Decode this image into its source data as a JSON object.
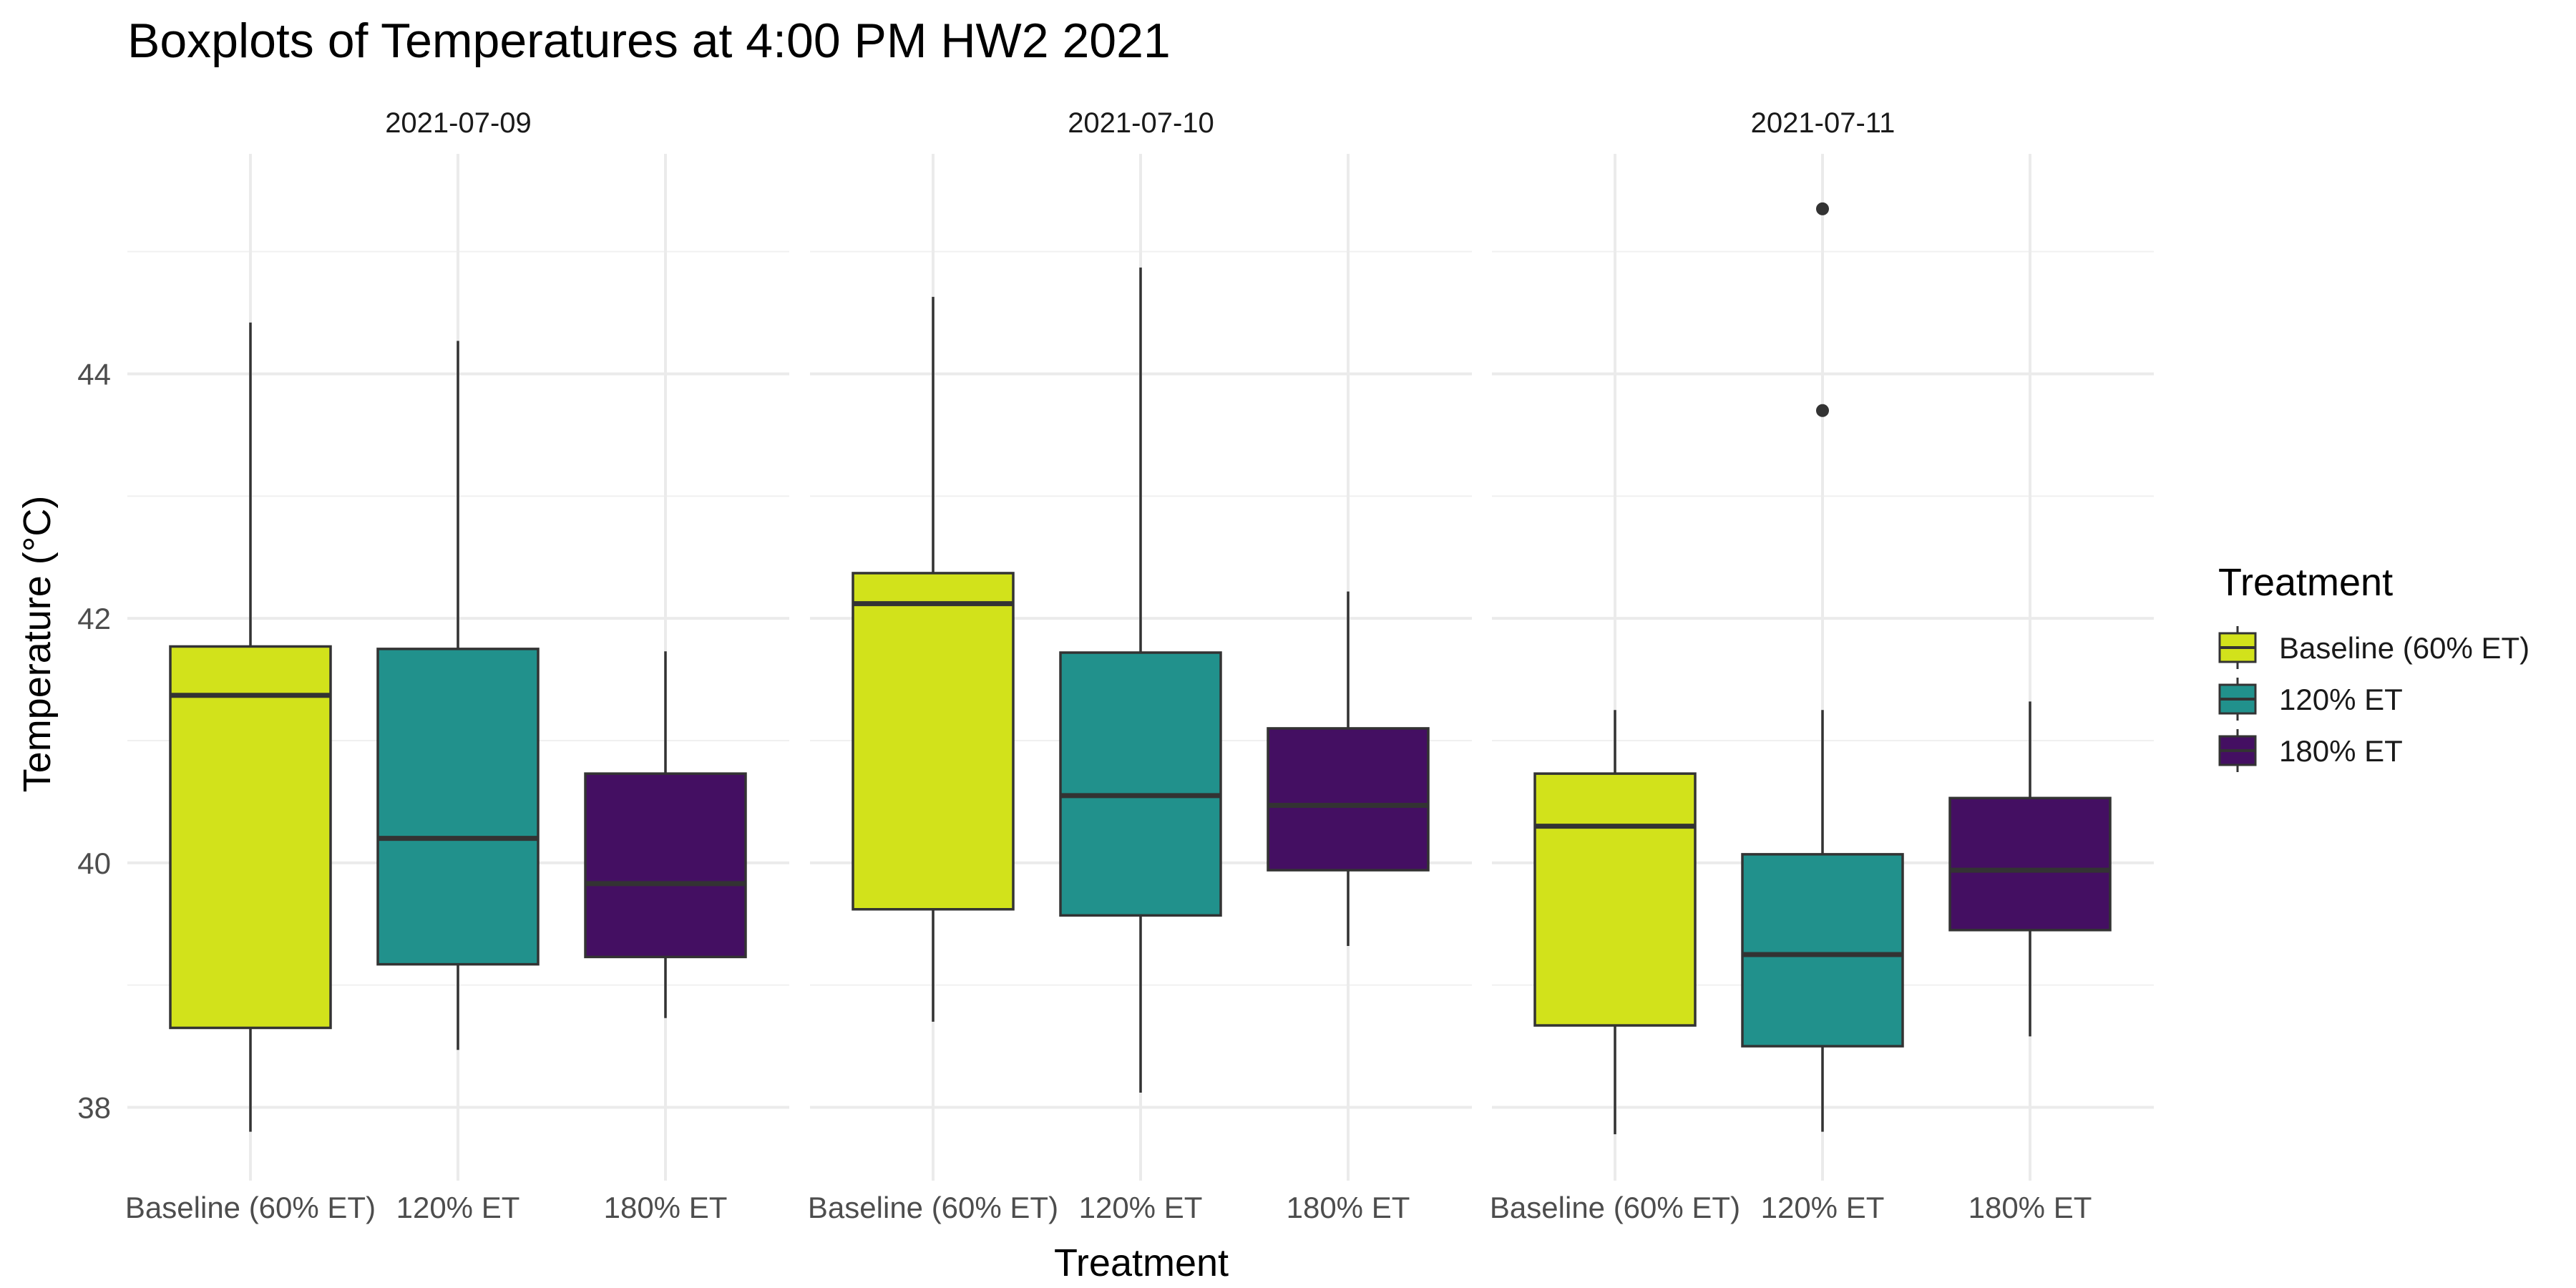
{
  "chart_data": {
    "type": "boxplot",
    "title": "Boxplots of Temperatures at 4:00 PM HW2 2021",
    "xlabel": "Treatment",
    "ylabel": "Temperature (°C)",
    "ylim": [
      37.4,
      45.8
    ],
    "yticks": [
      38,
      40,
      42,
      44
    ],
    "grid": true,
    "legend": {
      "title": "Treatment",
      "position": "right",
      "entries": [
        {
          "label": "Baseline (60% ET)",
          "color": "#d2e21b"
        },
        {
          "label": "120% ET",
          "color": "#21918c"
        },
        {
          "label": "180% ET",
          "color": "#440f62"
        }
      ]
    },
    "categories": [
      "Baseline (60% ET)",
      "120% ET",
      "180% ET"
    ],
    "panels": [
      {
        "label": "2021-07-09",
        "boxes": [
          {
            "category": "Baseline (60% ET)",
            "min": 37.8,
            "q1": 38.65,
            "median": 41.37,
            "q3": 41.77,
            "max": 44.42,
            "outliers": []
          },
          {
            "category": "120% ET",
            "min": 38.47,
            "q1": 39.17,
            "median": 40.2,
            "q3": 41.75,
            "max": 44.27,
            "outliers": []
          },
          {
            "category": "180% ET",
            "min": 38.73,
            "q1": 39.23,
            "median": 39.83,
            "q3": 40.73,
            "max": 41.73,
            "outliers": []
          }
        ]
      },
      {
        "label": "2021-07-10",
        "boxes": [
          {
            "category": "Baseline (60% ET)",
            "min": 38.7,
            "q1": 39.62,
            "median": 42.12,
            "q3": 42.37,
            "max": 44.63,
            "outliers": []
          },
          {
            "category": "120% ET",
            "min": 38.12,
            "q1": 39.57,
            "median": 40.55,
            "q3": 41.72,
            "max": 44.87,
            "outliers": []
          },
          {
            "category": "180% ET",
            "min": 39.32,
            "q1": 39.94,
            "median": 40.47,
            "q3": 41.1,
            "max": 42.22,
            "outliers": []
          }
        ]
      },
      {
        "label": "2021-07-11",
        "boxes": [
          {
            "category": "Baseline (60% ET)",
            "min": 37.78,
            "q1": 38.67,
            "median": 40.3,
            "q3": 40.73,
            "max": 41.25,
            "outliers": []
          },
          {
            "category": "120% ET",
            "min": 37.8,
            "q1": 38.5,
            "median": 39.25,
            "q3": 40.07,
            "max": 41.25,
            "outliers": [
              43.7,
              45.35
            ]
          },
          {
            "category": "180% ET",
            "min": 38.58,
            "q1": 39.45,
            "median": 39.94,
            "q3": 40.53,
            "max": 41.32,
            "outliers": []
          }
        ]
      }
    ]
  }
}
